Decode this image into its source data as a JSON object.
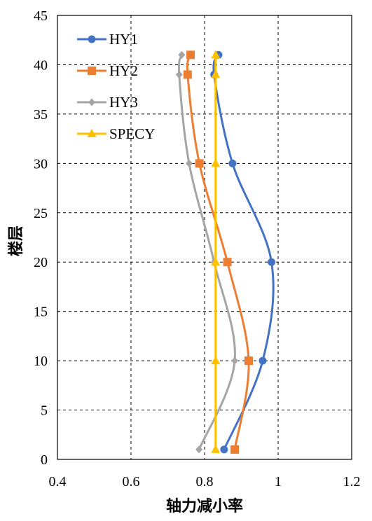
{
  "chart_data": {
    "type": "line",
    "xlabel": "轴力减小率",
    "ylabel": "楼层",
    "xlim": [
      0.4,
      1.2
    ],
    "ylim": [
      0,
      45
    ],
    "xticks": [
      0.4,
      0.6,
      0.8,
      1.0,
      1.2
    ],
    "xtick_labels": [
      "0.4",
      "0.6",
      "0.8",
      "1",
      "1.2"
    ],
    "yticks": [
      0,
      5,
      10,
      15,
      20,
      25,
      30,
      35,
      40,
      45
    ],
    "ytick_labels": [
      "0",
      "5",
      "10",
      "15",
      "20",
      "25",
      "30",
      "35",
      "40",
      "45"
    ],
    "grid": true,
    "legend_position": "top-left",
    "series": [
      {
        "name": "HY1",
        "color": "#4472C4",
        "marker": "circle",
        "points": [
          [
            0.853,
            1
          ],
          [
            0.958,
            10
          ],
          [
            0.982,
            20
          ],
          [
            0.876,
            30
          ],
          [
            0.826,
            39
          ],
          [
            0.838,
            41
          ]
        ]
      },
      {
        "name": "HY2",
        "color": "#ED7D31",
        "marker": "square",
        "points": [
          [
            0.882,
            1
          ],
          [
            0.92,
            10
          ],
          [
            0.862,
            20
          ],
          [
            0.786,
            30
          ],
          [
            0.754,
            39
          ],
          [
            0.762,
            41
          ]
        ]
      },
      {
        "name": "HY3",
        "color": "#A5A5A5",
        "marker": "diamond",
        "points": [
          [
            0.785,
            1
          ],
          [
            0.882,
            10
          ],
          [
            0.826,
            20
          ],
          [
            0.758,
            30
          ],
          [
            0.731,
            39
          ],
          [
            0.738,
            41
          ]
        ]
      },
      {
        "name": "SPECY",
        "color": "#FFC000",
        "marker": "triangle",
        "points": [
          [
            0.83,
            1
          ],
          [
            0.83,
            10
          ],
          [
            0.83,
            20
          ],
          [
            0.83,
            30
          ],
          [
            0.83,
            39
          ],
          [
            0.83,
            41
          ]
        ]
      }
    ]
  }
}
